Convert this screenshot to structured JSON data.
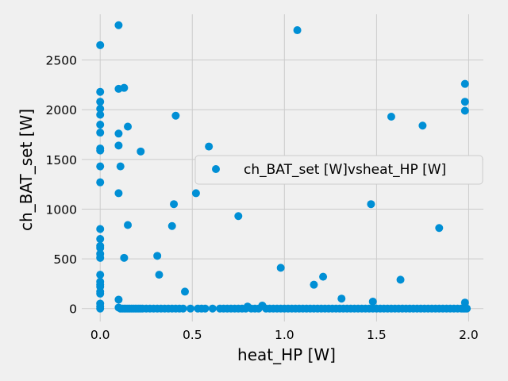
{
  "chart_data": {
    "type": "scatter",
    "xlabel": "heat_HP [W]",
    "ylabel": "ch_BAT_set [W]",
    "xlim": [
      -0.1,
      2.08
    ],
    "ylim": [
      -130,
      2960
    ],
    "xticks": [
      0.0,
      0.5,
      1.0,
      1.5,
      2.0
    ],
    "xtick_labels": [
      "0.0",
      "0.5",
      "1.0",
      "1.5",
      "2.0"
    ],
    "yticks": [
      0,
      500,
      1000,
      1500,
      2000,
      2500
    ],
    "ytick_labels": [
      "0",
      "500",
      "1000",
      "1500",
      "2000",
      "2500"
    ],
    "grid": true,
    "legend_position": "center-right",
    "series": [
      {
        "name": "ch_BAT_set [W]vsheat_HP [W]",
        "color": "#008fd5",
        "points": [
          [
            0.0,
            2650
          ],
          [
            0.0,
            2180
          ],
          [
            0.0,
            2080
          ],
          [
            0.0,
            2010
          ],
          [
            0.0,
            1950
          ],
          [
            0.0,
            1850
          ],
          [
            0.0,
            1770
          ],
          [
            0.0,
            1610
          ],
          [
            0.0,
            1590
          ],
          [
            0.0,
            1430
          ],
          [
            0.0,
            1270
          ],
          [
            0.0,
            800
          ],
          [
            0.0,
            700
          ],
          [
            0.0,
            630
          ],
          [
            0.0,
            610
          ],
          [
            0.0,
            550
          ],
          [
            0.0,
            510
          ],
          [
            0.0,
            340
          ],
          [
            0.0,
            270
          ],
          [
            0.0,
            240
          ],
          [
            0.0,
            220
          ],
          [
            0.0,
            170
          ],
          [
            0.0,
            150
          ],
          [
            0.0,
            50
          ],
          [
            0.0,
            20
          ],
          [
            0.0,
            0
          ],
          [
            0.1,
            2850
          ],
          [
            0.1,
            2210
          ],
          [
            0.13,
            2220
          ],
          [
            0.1,
            1760
          ],
          [
            0.15,
            1830
          ],
          [
            0.1,
            1640
          ],
          [
            0.11,
            1430
          ],
          [
            0.1,
            1160
          ],
          [
            0.22,
            1580
          ],
          [
            0.15,
            840
          ],
          [
            0.13,
            510
          ],
          [
            0.1,
            90
          ],
          [
            0.41,
            1940
          ],
          [
            0.4,
            1050
          ],
          [
            0.39,
            830
          ],
          [
            0.31,
            530
          ],
          [
            0.32,
            340
          ],
          [
            0.46,
            170
          ],
          [
            0.52,
            1160
          ],
          [
            0.59,
            1630
          ],
          [
            0.75,
            930
          ],
          [
            0.98,
            410
          ],
          [
            1.07,
            2800
          ],
          [
            1.16,
            240
          ],
          [
            1.21,
            320
          ],
          [
            1.31,
            100
          ],
          [
            1.47,
            1050
          ],
          [
            1.48,
            70
          ],
          [
            1.58,
            1930
          ],
          [
            1.63,
            290
          ],
          [
            1.75,
            1840
          ],
          [
            1.84,
            810
          ],
          [
            1.98,
            2260
          ],
          [
            1.98,
            2080
          ],
          [
            1.98,
            1990
          ],
          [
            1.98,
            60
          ],
          [
            0.1,
            10
          ],
          [
            0.11,
            0
          ],
          [
            0.12,
            0
          ],
          [
            0.13,
            0
          ],
          [
            0.14,
            0
          ],
          [
            0.15,
            0
          ],
          [
            0.16,
            0
          ],
          [
            0.17,
            0
          ],
          [
            0.18,
            0
          ],
          [
            0.19,
            0
          ],
          [
            0.2,
            0
          ],
          [
            0.21,
            0
          ],
          [
            0.22,
            0
          ],
          [
            0.23,
            0
          ],
          [
            0.25,
            0
          ],
          [
            0.27,
            0
          ],
          [
            0.29,
            0
          ],
          [
            0.31,
            0
          ],
          [
            0.33,
            0
          ],
          [
            0.35,
            0
          ],
          [
            0.37,
            0
          ],
          [
            0.39,
            0
          ],
          [
            0.41,
            0
          ],
          [
            0.43,
            0
          ],
          [
            0.45,
            0
          ],
          [
            0.49,
            0
          ],
          [
            0.53,
            0
          ],
          [
            0.55,
            0
          ],
          [
            0.57,
            0
          ],
          [
            0.61,
            0
          ],
          [
            0.65,
            0
          ],
          [
            0.67,
            0
          ],
          [
            0.69,
            0
          ],
          [
            0.71,
            0
          ],
          [
            0.73,
            0
          ],
          [
            0.75,
            0
          ],
          [
            0.77,
            0
          ],
          [
            0.79,
            0
          ],
          [
            0.8,
            20
          ],
          [
            0.82,
            0
          ],
          [
            0.84,
            0
          ],
          [
            0.86,
            0
          ],
          [
            0.88,
            30
          ],
          [
            0.9,
            0
          ],
          [
            0.92,
            0
          ],
          [
            0.94,
            0
          ],
          [
            0.96,
            0
          ],
          [
            0.98,
            0
          ],
          [
            1.0,
            0
          ],
          [
            1.02,
            0
          ],
          [
            1.04,
            0
          ],
          [
            1.06,
            0
          ],
          [
            1.08,
            0
          ],
          [
            1.1,
            0
          ],
          [
            1.12,
            0
          ],
          [
            1.14,
            0
          ],
          [
            1.16,
            0
          ],
          [
            1.18,
            0
          ],
          [
            1.2,
            0
          ],
          [
            1.22,
            0
          ],
          [
            1.24,
            0
          ],
          [
            1.26,
            0
          ],
          [
            1.28,
            0
          ],
          [
            1.3,
            0
          ],
          [
            1.32,
            0
          ],
          [
            1.34,
            0
          ],
          [
            1.36,
            0
          ],
          [
            1.38,
            0
          ],
          [
            1.4,
            0
          ],
          [
            1.42,
            0
          ],
          [
            1.44,
            0
          ],
          [
            1.46,
            0
          ],
          [
            1.48,
            0
          ],
          [
            1.5,
            0
          ],
          [
            1.52,
            0
          ],
          [
            1.54,
            0
          ],
          [
            1.56,
            0
          ],
          [
            1.58,
            0
          ],
          [
            1.6,
            0
          ],
          [
            1.62,
            0
          ],
          [
            1.64,
            0
          ],
          [
            1.66,
            0
          ],
          [
            1.68,
            0
          ],
          [
            1.7,
            0
          ],
          [
            1.72,
            0
          ],
          [
            1.74,
            0
          ],
          [
            1.76,
            0
          ],
          [
            1.78,
            0
          ],
          [
            1.8,
            0
          ],
          [
            1.82,
            0
          ],
          [
            1.84,
            0
          ],
          [
            1.86,
            0
          ],
          [
            1.88,
            0
          ],
          [
            1.9,
            0
          ],
          [
            1.92,
            0
          ],
          [
            1.94,
            0
          ],
          [
            1.96,
            0
          ],
          [
            1.97,
            0
          ],
          [
            1.98,
            0
          ],
          [
            1.99,
            0
          ]
        ]
      }
    ]
  }
}
